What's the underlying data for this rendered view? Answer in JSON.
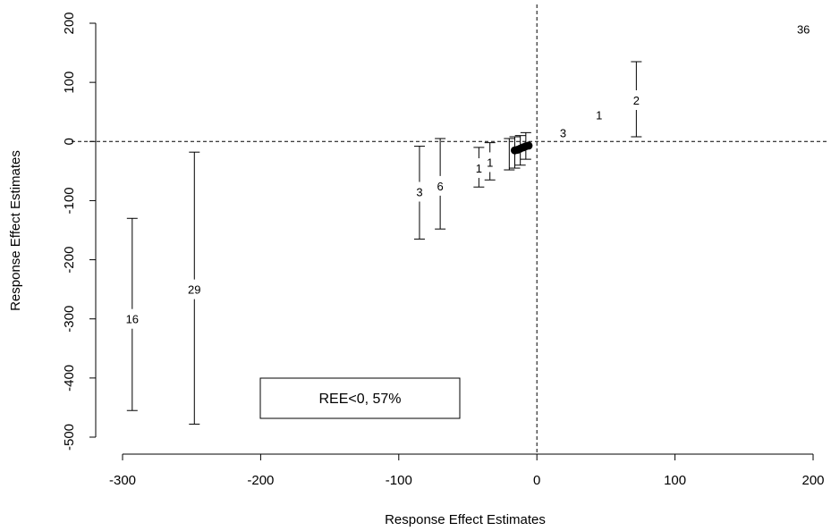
{
  "chart_data": {
    "type": "scatter",
    "xlabel": "Response Effect Estimates",
    "ylabel": "Response Effect Estimates",
    "xlim": [
      -300,
      200
    ],
    "ylim": [
      -500,
      200
    ],
    "x_ticks": [
      -300,
      -200,
      -100,
      0,
      100,
      200
    ],
    "y_ticks": [
      -500,
      -400,
      -300,
      -200,
      -100,
      0,
      100,
      200
    ],
    "x_tick_labels": [
      "-300",
      "-200",
      "-100",
      "0",
      "100",
      "200"
    ],
    "y_tick_labels": [
      "-500",
      "-400",
      "-300",
      "-200",
      "-100",
      "0",
      "100",
      "200"
    ],
    "reference_lines": {
      "x": 0,
      "y": 0,
      "style": "dashed"
    },
    "annotation_box": {
      "text": "REE<0, 57%"
    },
    "intervals": [
      {
        "x": -293,
        "y": -300,
        "lower": -455,
        "upper": -130,
        "n": "16"
      },
      {
        "x": -248,
        "y": -250,
        "lower": -478,
        "upper": -18,
        "n": "29"
      },
      {
        "x": -85,
        "y": -85,
        "lower": -165,
        "upper": -8,
        "n": "3"
      },
      {
        "x": -70,
        "y": -75,
        "lower": -148,
        "upper": 5,
        "n": "6"
      },
      {
        "x": -42,
        "y": -45,
        "lower": -77,
        "upper": -10,
        "n": "1"
      },
      {
        "x": -34,
        "y": -35,
        "lower": -65,
        "upper": -2,
        "n": "1"
      },
      {
        "x": -20,
        "y": -20,
        "lower": -48,
        "upper": 5,
        "n": ""
      },
      {
        "x": -16,
        "y": -15,
        "lower": -45,
        "upper": 8,
        "n": ""
      },
      {
        "x": -12,
        "y": -12,
        "lower": -40,
        "upper": 10,
        "n": ""
      },
      {
        "x": -8,
        "y": -10,
        "lower": -30,
        "upper": 15,
        "n": ""
      },
      {
        "x": 72,
        "y": 70,
        "lower": 8,
        "upper": 135,
        "n": "2"
      }
    ],
    "points": [
      {
        "x": -16,
        "y": -15
      },
      {
        "x": -14,
        "y": -14
      },
      {
        "x": -12,
        "y": -12
      },
      {
        "x": -10,
        "y": -10
      },
      {
        "x": -8,
        "y": -8
      },
      {
        "x": -6,
        "y": -7
      }
    ],
    "labels": [
      {
        "x": 45,
        "y": 45,
        "text": "1"
      },
      {
        "x": 19,
        "y": 15,
        "text": "3"
      },
      {
        "x": 193,
        "y": 190,
        "text": "36"
      }
    ]
  }
}
